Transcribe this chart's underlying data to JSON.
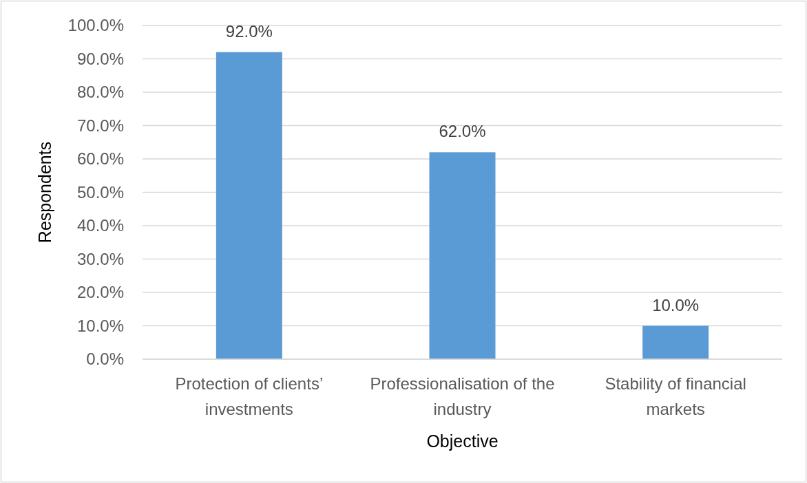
{
  "chart_data": {
    "type": "bar",
    "xlabel": "Objective",
    "ylabel": "Respondents",
    "categories": [
      "Protection of clients’ investments",
      "Professionalisation of the industry",
      "Stability of financial markets"
    ],
    "values": [
      92,
      62,
      10
    ],
    "color": "#5b9bd5",
    "value_labels": [
      "92.0%",
      "62.0%",
      "10.0%"
    ],
    "ylim": [
      0,
      100
    ],
    "yticks": [
      {
        "value": 0,
        "label": "0.0%"
      },
      {
        "value": 10,
        "label": "10.0%"
      },
      {
        "value": 20,
        "label": "20.0%"
      },
      {
        "value": 30,
        "label": "30.0%"
      },
      {
        "value": 40,
        "label": "40.0%"
      },
      {
        "value": 50,
        "label": "50.0%"
      },
      {
        "value": 60,
        "label": "60.0%"
      },
      {
        "value": 70,
        "label": "70.0%"
      },
      {
        "value": 80,
        "label": "80.0%"
      },
      {
        "value": 90,
        "label": "90.0%"
      },
      {
        "value": 100,
        "label": "100.0%"
      }
    ],
    "grid": "y"
  }
}
